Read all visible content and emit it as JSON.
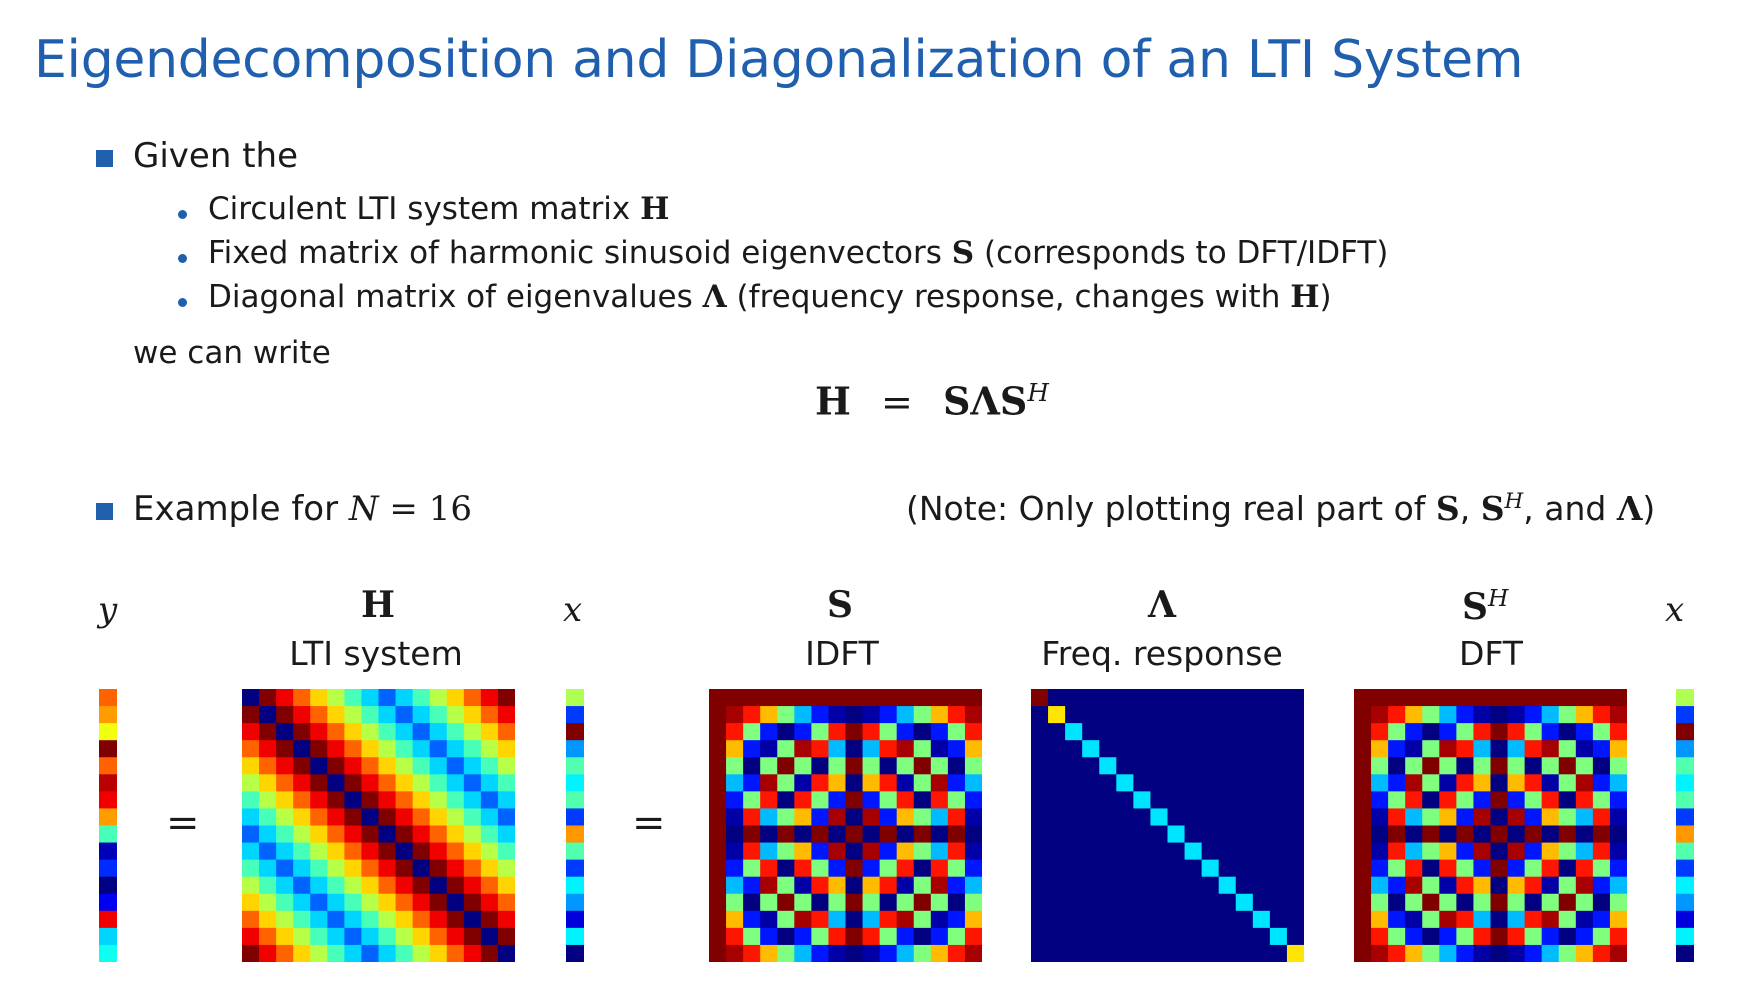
{
  "slide": {
    "title": "Eigendecomposition and Diagonalization of an LTI System",
    "given": "Given the",
    "items": [
      {
        "text": "Circulent LTI system matrix ",
        "sym": "H",
        "rest": ""
      },
      {
        "text": "Fixed matrix of harmonic sinusoid eigenvectors ",
        "sym": "S",
        "rest": " (corresponds to DFT/IDFT)"
      },
      {
        "text": "Diagonal matrix of eigenvalues ",
        "sym": "Λ",
        "rest": " (frequency response, changes with ",
        "sym2": "H",
        "rest2": ")"
      }
    ],
    "we_can_write": "we can write",
    "equation": {
      "lhs": "H",
      "eq": "=",
      "rhs": "SΛS",
      "sup": "H"
    },
    "example": {
      "prefix": "Example for ",
      "var": "N",
      "eq": " = 16"
    },
    "note": {
      "a": "(Note: Only plotting real part of ",
      "s": "S",
      "comma": ", ",
      "sh": "S",
      "sup": "H",
      "and": ", and ",
      "lam": "Λ",
      "close": ")"
    }
  },
  "figure": {
    "y_label": "y",
    "x_label": "x",
    "x_label2": "x",
    "equals": "=",
    "equals2": "=",
    "matrices": [
      {
        "sym": "H",
        "sup": "",
        "caption": "LTI system"
      },
      {
        "sym": "S",
        "sup": "",
        "caption": "IDFT"
      },
      {
        "sym": "Λ",
        "sup": "",
        "caption": "Freq. response"
      },
      {
        "sym": "S",
        "sup": "H",
        "caption": "DFT"
      }
    ],
    "N": 16
  },
  "colors": {
    "accent": "#1f5fae",
    "text": "#1a1a1a",
    "colormap": "jet"
  }
}
